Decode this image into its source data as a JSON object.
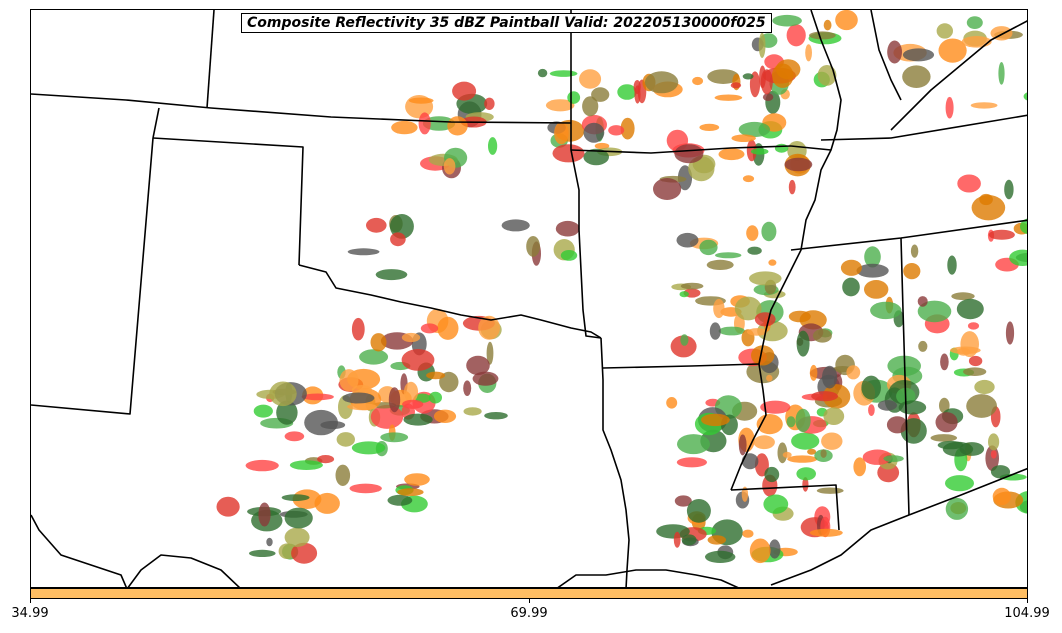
{
  "title": "Composite Reflectivity 35 dBZ Paintball Valid: 202205130000f025",
  "colorbar": {
    "color": "#ffbe63",
    "tick_labels": [
      "34.99",
      "69.99",
      "104.99"
    ]
  },
  "member_colors": [
    "#4caf4c",
    "#33cc33",
    "#8b3a3a",
    "#ff8c1a",
    "#e0342b",
    "#ff4444",
    "#a9a94a",
    "#8b7d3a",
    "#555555",
    "#2e6e2e",
    "#ffa040",
    "#dd7a00"
  ]
}
